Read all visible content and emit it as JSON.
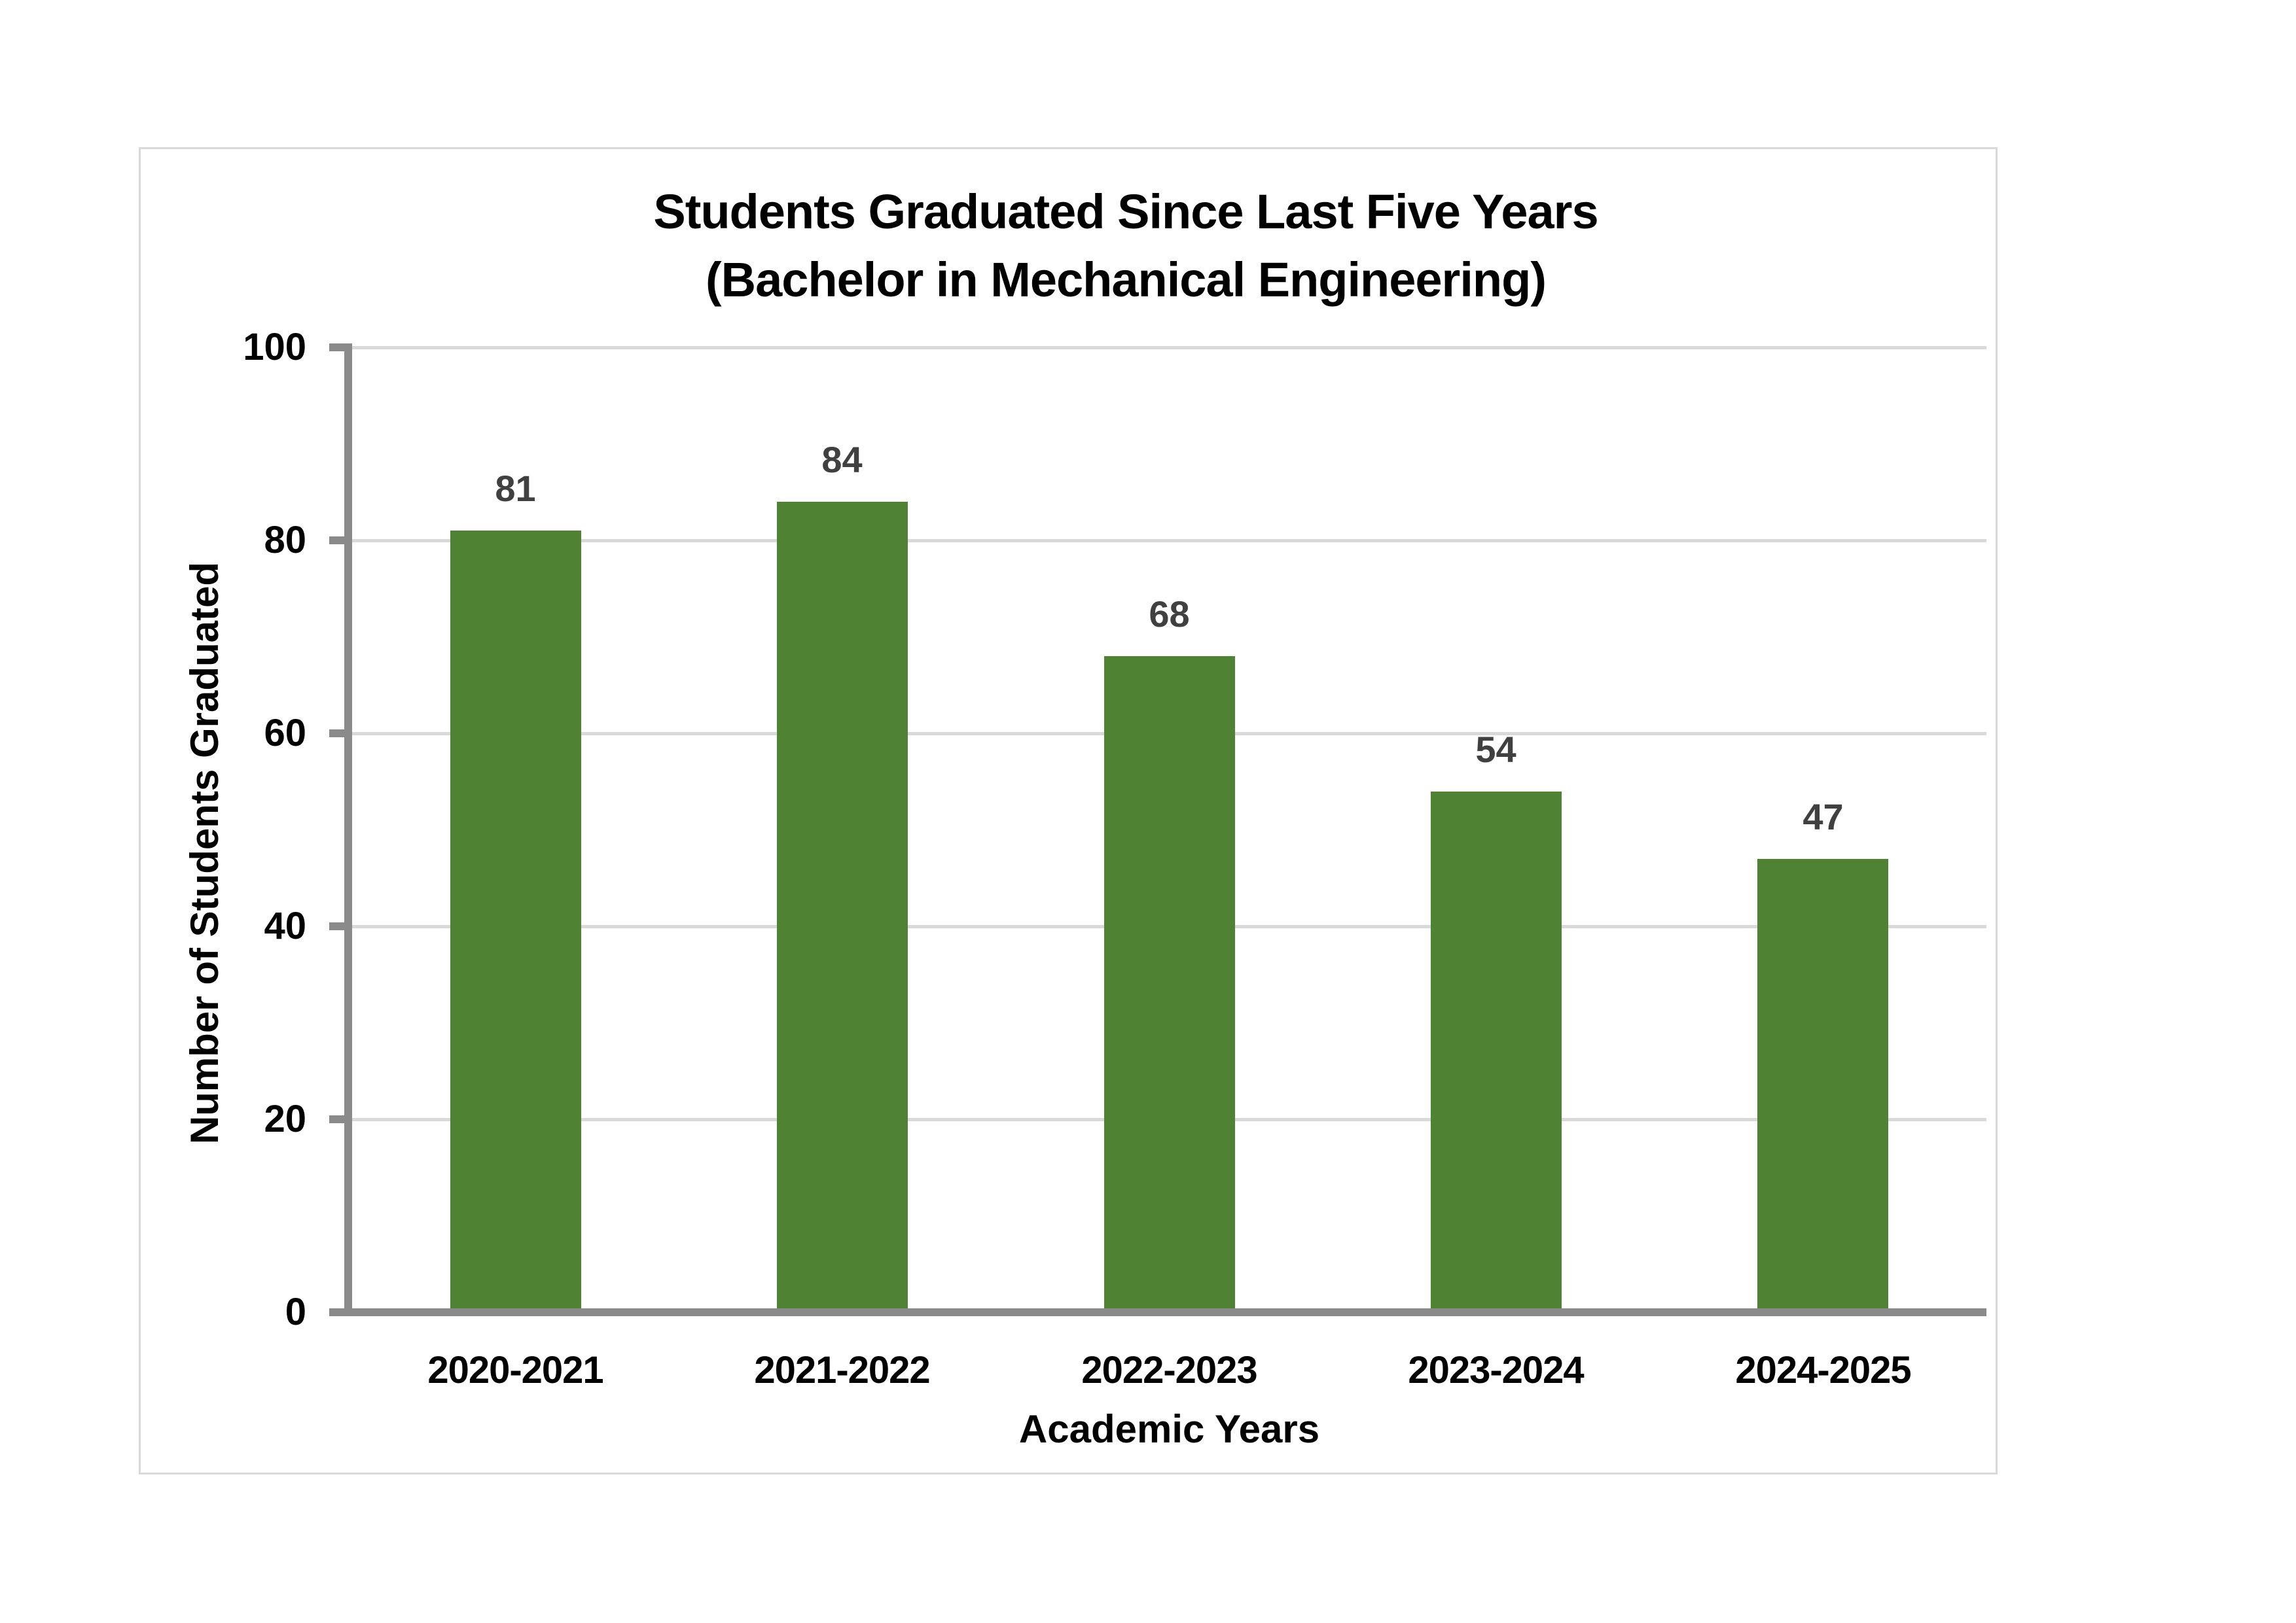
{
  "chart_data": {
    "type": "bar",
    "title_line1": "Students Graduated Since Last Five Years",
    "title_line2": "(Bachelor in Mechanical Engineering)",
    "categories": [
      "2020-2021",
      "2021-2022",
      "2022-2023",
      "2023-2024",
      "2024-2025"
    ],
    "values": [
      81,
      84,
      68,
      54,
      47
    ],
    "data_labels": [
      "81",
      "84",
      "68",
      "54",
      "47"
    ],
    "xlabel": "Academic Years",
    "ylabel": "Number of Students Graduated",
    "ylim": [
      0,
      100
    ],
    "yticks": [
      0,
      20,
      40,
      60,
      80,
      100
    ],
    "grid": true,
    "legend": "none",
    "colors": {
      "bar": "#4F8232",
      "data_label": "#404040",
      "axis_line": "#8A8A8A",
      "gridline": "#D9D9D9",
      "text": "#000000",
      "frame_border": "#D9D9D9"
    }
  }
}
